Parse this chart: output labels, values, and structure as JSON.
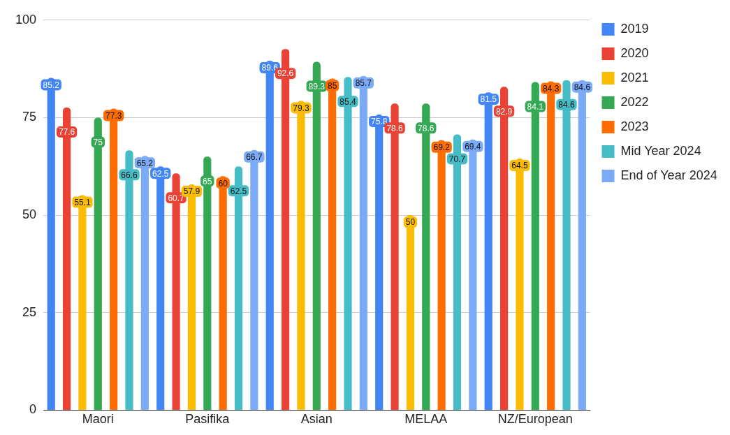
{
  "chart_data": {
    "type": "bar",
    "categories": [
      "Maori",
      "Pasifika",
      "Asian",
      "MELAA",
      "NZ/European"
    ],
    "series": [
      {
        "name": "2019",
        "color": "#4285f4",
        "values": [
          85.2,
          62.5,
          89.6,
          75.8,
          81.5
        ]
      },
      {
        "name": "2020",
        "color": "#ea4335",
        "values": [
          77.6,
          60.7,
          92.6,
          78.6,
          82.9
        ]
      },
      {
        "name": "2021",
        "color": "#fbbc04",
        "values": [
          55.1,
          57.9,
          79.3,
          50,
          64.5
        ]
      },
      {
        "name": "2022",
        "color": "#34a853",
        "values": [
          75,
          65,
          89.3,
          78.6,
          84.1
        ]
      },
      {
        "name": "2023",
        "color": "#ff6d01",
        "values": [
          77.3,
          60,
          85.0,
          69.2,
          84.3
        ]
      },
      {
        "name": "Mid Year 2024",
        "color": "#46bdc6",
        "values": [
          66.6,
          62.5,
          85.4,
          70.7,
          84.6
        ]
      },
      {
        "name": "End of Year 2024",
        "color": "#7baaf7",
        "values": [
          65.2,
          66.7,
          85.7,
          69.4,
          84.6
        ]
      }
    ],
    "ylim": [
      0,
      100
    ],
    "yticks": [
      0,
      25,
      50,
      75,
      100
    ],
    "grid": "y",
    "legend": "top right",
    "data_labels": true
  }
}
